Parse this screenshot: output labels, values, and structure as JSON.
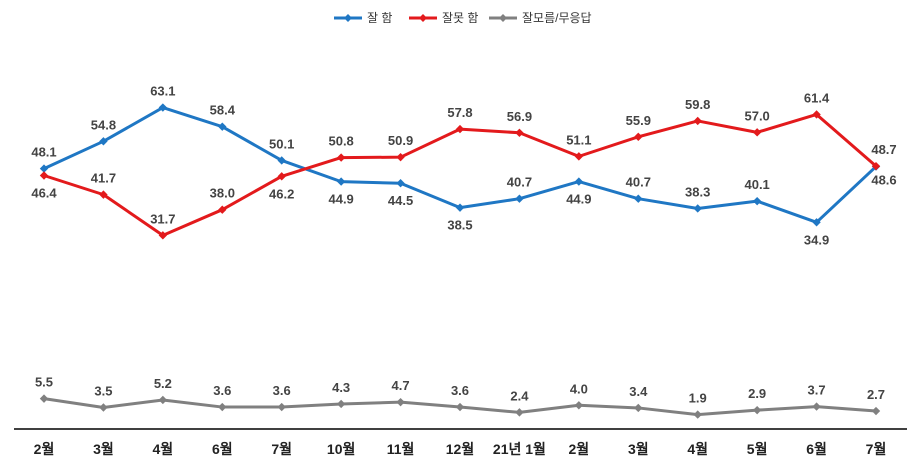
{
  "chart_data": {
    "type": "line",
    "categories": [
      "2월",
      "3월",
      "4월",
      "6월",
      "7월",
      "10월",
      "11월",
      "12월",
      "21년 1월",
      "2월",
      "3월",
      "4월",
      "5월",
      "6월",
      "7월"
    ],
    "series": [
      {
        "name": "잘 함",
        "color": "#1F77C4",
        "marker": "diamond",
        "values": [
          48.1,
          54.8,
          63.1,
          58.4,
          50.1,
          44.9,
          44.5,
          38.5,
          40.7,
          44.9,
          40.7,
          38.3,
          40.1,
          34.9,
          48.6
        ]
      },
      {
        "name": "잘못 함",
        "color": "#E31A1C",
        "marker": "diamond",
        "values": [
          46.4,
          41.7,
          31.7,
          38.0,
          46.2,
          50.8,
          50.9,
          57.8,
          56.9,
          51.1,
          55.9,
          59.8,
          57.0,
          61.4,
          48.7
        ]
      },
      {
        "name": "잘모름/무응답",
        "color": "#808080",
        "marker": "diamond",
        "values": [
          5.5,
          3.5,
          5.2,
          3.6,
          3.6,
          4.3,
          4.7,
          3.6,
          2.4,
          4.0,
          3.4,
          1.9,
          2.9,
          3.7,
          2.7
        ]
      }
    ],
    "legend_position": "top-center",
    "grid": false
  }
}
